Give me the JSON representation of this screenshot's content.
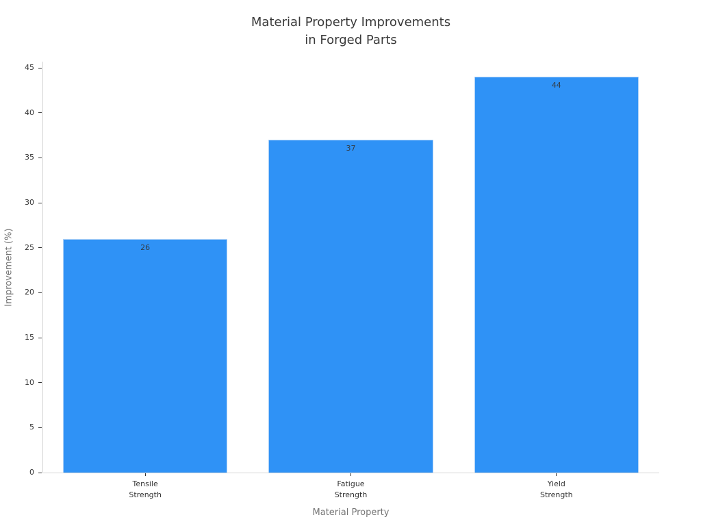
{
  "page": {
    "background": "#ffffff"
  },
  "chart_data": {
    "type": "bar",
    "title": "Material Property Improvements\nin Forged Parts",
    "title_lines": [
      "Material Property Improvements",
      "in Forged Parts"
    ],
    "categories": [
      "Tensile\nStrength",
      "Fatigue\nStrength",
      "Yield\nStrength"
    ],
    "values": [
      26,
      37,
      44
    ],
    "value_labels": [
      "26",
      "37",
      "44"
    ],
    "xlabel": "Material Property",
    "ylabel": "Improvement (%)",
    "yticks": [
      0,
      5,
      10,
      15,
      20,
      25,
      30,
      35,
      40,
      45
    ],
    "ylim": [
      0,
      45.7
    ],
    "bar_color": "#2F92F6",
    "bar_edge_color": "#ABD0F7",
    "bar_width_fraction": 0.8,
    "grid": false,
    "legend": null
  }
}
